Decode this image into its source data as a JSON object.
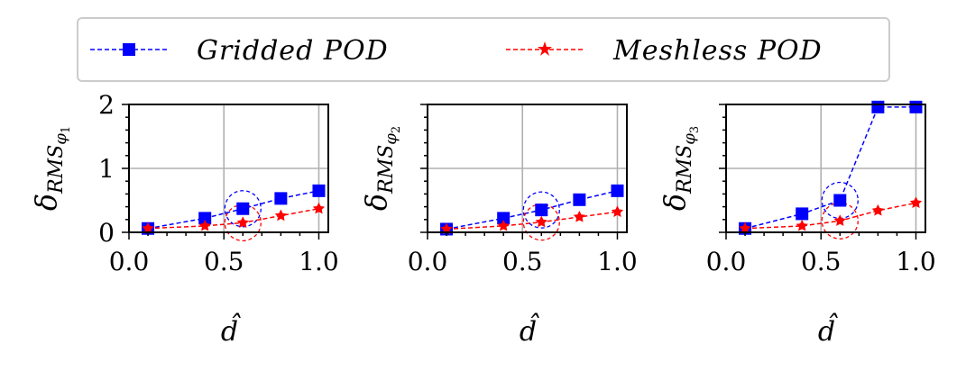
{
  "legend": {
    "entries": [
      {
        "label": "Gridded POD",
        "color": "#0000ff",
        "marker": "square"
      },
      {
        "label": "Meshless POD",
        "color": "#ff0000",
        "marker": "star"
      }
    ],
    "placement": "top-center"
  },
  "chart_data": [
    {
      "type": "line",
      "xlabel": "d̂",
      "ylabel": "δ",
      "ylabel_sub": "RMS",
      "ylabel_subsub": "φ",
      "ylabel_index": "1",
      "xlim": [
        0.0,
        1.05
      ],
      "ylim": [
        0,
        2
      ],
      "xticks": [
        "0.0",
        "0.5",
        "1.0"
      ],
      "yticks": [
        "0",
        "1",
        "2"
      ],
      "grid": true,
      "series": [
        {
          "name": "Gridded POD",
          "color": "#0000ff",
          "x": [
            0.1,
            0.4,
            0.6,
            0.8,
            1.0
          ],
          "y": [
            0.06,
            0.22,
            0.37,
            0.53,
            0.65
          ]
        },
        {
          "name": "Meshless POD",
          "color": "#ff0000",
          "x": [
            0.1,
            0.4,
            0.6,
            0.8,
            1.0
          ],
          "y": [
            0.06,
            0.1,
            0.15,
            0.26,
            0.37
          ]
        }
      ],
      "highlight": {
        "x": 0.6,
        "marker": "circle"
      }
    },
    {
      "type": "line",
      "xlabel": "d̂",
      "ylabel": "δ",
      "ylabel_sub": "RMS",
      "ylabel_subsub": "φ",
      "ylabel_index": "2",
      "xlim": [
        0.0,
        1.05
      ],
      "ylim": [
        0,
        2
      ],
      "xticks": [
        "0.0",
        "0.5",
        "1.0"
      ],
      "yticks": [],
      "grid": true,
      "series": [
        {
          "name": "Gridded POD",
          "color": "#0000ff",
          "x": [
            0.1,
            0.4,
            0.6,
            0.8,
            1.0
          ],
          "y": [
            0.05,
            0.22,
            0.35,
            0.51,
            0.65
          ]
        },
        {
          "name": "Meshless POD",
          "color": "#ff0000",
          "x": [
            0.1,
            0.4,
            0.6,
            0.8,
            1.0
          ],
          "y": [
            0.05,
            0.1,
            0.16,
            0.24,
            0.32
          ]
        }
      ],
      "highlight": {
        "x": 0.6,
        "marker": "circle"
      }
    },
    {
      "type": "line",
      "xlabel": "d̂",
      "ylabel": "δ",
      "ylabel_sub": "RMS",
      "ylabel_subsub": "φ",
      "ylabel_index": "3",
      "xlim": [
        0.0,
        1.05
      ],
      "ylim": [
        0,
        2
      ],
      "xticks": [
        "0.0",
        "0.5",
        "1.0"
      ],
      "yticks": [],
      "grid": true,
      "series": [
        {
          "name": "Gridded POD",
          "color": "#0000ff",
          "x": [
            0.1,
            0.4,
            0.6,
            0.8,
            1.0
          ],
          "y": [
            0.06,
            0.29,
            0.5,
            1.96,
            1.96
          ]
        },
        {
          "name": "Meshless POD",
          "color": "#ff0000",
          "x": [
            0.1,
            0.4,
            0.6,
            0.8,
            1.0
          ],
          "y": [
            0.06,
            0.1,
            0.18,
            0.34,
            0.46
          ]
        }
      ],
      "highlight": {
        "x": 0.6,
        "marker": "circle"
      }
    }
  ]
}
